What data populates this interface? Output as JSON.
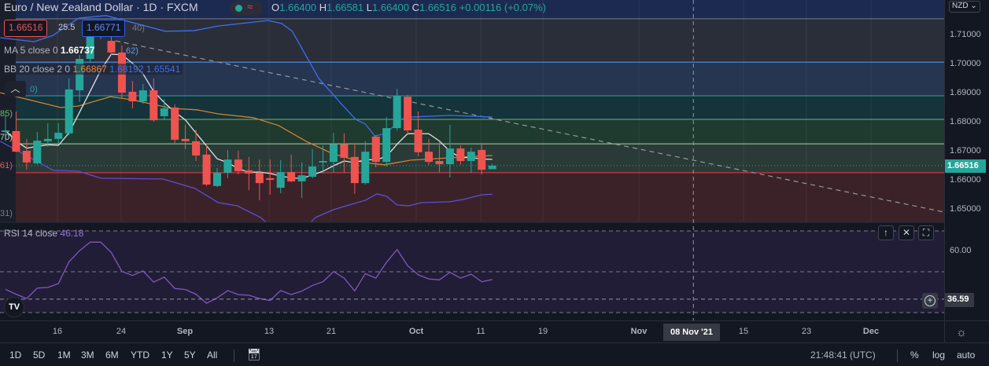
{
  "header": {
    "symbol_title": "Euro / New Zealand Dollar · 1D · FXCM",
    "ohlc": {
      "o_label": "O",
      "o": "1.66400",
      "h_label": "H",
      "h": "1.66581",
      "l_label": "L",
      "l": "1.66400",
      "c_label": "C",
      "c": "1.66516",
      "change": "+0.00116 (+0.07%)"
    },
    "sell_price": "1.66516",
    "spread": "25.5",
    "buy_price": "1.66771",
    "collapse_icon": "chevron-up"
  },
  "indicators": {
    "ma": {
      "label": "MA 5 close 0",
      "value": "1.66737"
    },
    "bb": {
      "label": "BB 20 close 2 0",
      "basis": "1.66867",
      "upper": "1.68192",
      "lower": "1.65541"
    },
    "rsi": {
      "label": "RSI 14 close",
      "value": "46.18"
    }
  },
  "fib_labels": [
    "40)",
    "62)",
    "0)",
    "85)",
    "70)",
    "61)",
    "31)"
  ],
  "price_axis": {
    "currency": "NZD ⌄",
    "ticks": [
      "1.71000",
      "1.70000",
      "1.69000",
      "1.68000",
      "1.67000",
      "1.66000",
      "1.65000"
    ],
    "current": "1.66516"
  },
  "rsi_axis": {
    "ticks": [
      "60.00"
    ],
    "crosshair_value": "36.59"
  },
  "rsi_pane_buttons": {
    "up": "↑",
    "close": "✕",
    "maximize": "⛶"
  },
  "time_axis": {
    "labels": [
      "16",
      "24",
      "Sep",
      "13",
      "21",
      "Oct",
      "11",
      "19",
      "Nov",
      "15",
      "23",
      "Dec"
    ],
    "crosshair": "08 Nov '21"
  },
  "bottom_bar": {
    "ranges": [
      "1D",
      "5D",
      "1M",
      "3M",
      "6M",
      "YTD",
      "1Y",
      "5Y",
      "All"
    ],
    "clock": "21:48:41 (UTC)",
    "percent": "%",
    "log": "log",
    "auto": "auto"
  },
  "colors": {
    "up": "#26a69a",
    "down": "#ef5350",
    "ma": "#e0e3eb",
    "bb_basis": "#d3822d",
    "bb_upper": "#3d6ff0",
    "bb_lower": "#5b4fd6",
    "rsi": "#7e57c2",
    "bg": "#131722"
  },
  "chart_data": {
    "type": "candlestick",
    "title": "Euro / New Zealand Dollar · 1D · FXCM",
    "ylim": [
      1.6425,
      1.7205
    ],
    "ohlc": [
      [
        1.6768,
        1.6825,
        1.6736,
        1.6773
      ],
      [
        1.6771,
        1.6838,
        1.6698,
        1.67
      ],
      [
        1.6703,
        1.6744,
        1.6638,
        1.6663
      ],
      [
        1.666,
        1.6768,
        1.6655,
        1.6738
      ],
      [
        1.6736,
        1.6798,
        1.6717,
        1.6744
      ],
      [
        1.6744,
        1.6798,
        1.673,
        1.6765
      ],
      [
        1.6763,
        1.6952,
        1.6757,
        1.6914
      ],
      [
        1.6911,
        1.7033,
        1.6871,
        1.7019
      ],
      [
        1.7019,
        1.7127,
        1.7006,
        1.7095
      ],
      [
        1.7095,
        1.7141,
        1.7087,
        1.7108
      ],
      [
        1.7081,
        1.7127,
        1.7033,
        1.7041
      ],
      [
        1.7041,
        1.7065,
        1.6884,
        1.6903
      ],
      [
        1.6906,
        1.6943,
        1.6849,
        1.6873
      ],
      [
        1.6873,
        1.6933,
        1.6865,
        1.6911
      ],
      [
        1.6911,
        1.6952,
        1.6803,
        1.6808
      ],
      [
        1.6822,
        1.6881,
        1.6808,
        1.6849
      ],
      [
        1.6852,
        1.6862,
        1.673,
        1.6741
      ],
      [
        1.6744,
        1.6792,
        1.6709,
        1.6736
      ],
      [
        1.6736,
        1.6776,
        1.6668,
        1.6687
      ],
      [
        1.669,
        1.6722,
        1.6582,
        1.6587
      ],
      [
        1.6582,
        1.6644,
        1.6579,
        1.6628
      ],
      [
        1.6628,
        1.6706,
        1.6609,
        1.6673
      ],
      [
        1.6673,
        1.6703,
        1.6622,
        1.6633
      ],
      [
        1.6636,
        1.6682,
        1.6568,
        1.6625
      ],
      [
        1.6628,
        1.6673,
        1.6533,
        1.6592
      ],
      [
        1.6609,
        1.6673,
        1.6552,
        1.6603
      ],
      [
        1.6576,
        1.6671,
        1.6557,
        1.663
      ],
      [
        1.663,
        1.669,
        1.6595,
        1.6598
      ],
      [
        1.6598,
        1.6663,
        1.6541,
        1.6619
      ],
      [
        1.6614,
        1.6709,
        1.6609,
        1.6649
      ],
      [
        1.6663,
        1.6722,
        1.6625,
        1.6668
      ],
      [
        1.6665,
        1.6765,
        1.6628,
        1.6725
      ],
      [
        1.6725,
        1.6763,
        1.6628,
        1.6679
      ],
      [
        1.6682,
        1.673,
        1.6555,
        1.6592
      ],
      [
        1.6592,
        1.6736,
        1.6587,
        1.67
      ],
      [
        1.6752,
        1.6757,
        1.6646,
        1.6665
      ],
      [
        1.6665,
        1.6819,
        1.6649,
        1.6781
      ],
      [
        1.6781,
        1.6916,
        1.6773,
        1.6892
      ],
      [
        1.6889,
        1.6895,
        1.6757,
        1.6773
      ],
      [
        1.6776,
        1.6838,
        1.6684,
        1.6698
      ],
      [
        1.67,
        1.6744,
        1.6655,
        1.6665
      ],
      [
        1.6668,
        1.6736,
        1.663,
        1.6657
      ],
      [
        1.6657,
        1.6792,
        1.6611,
        1.6711
      ],
      [
        1.6711,
        1.6722,
        1.6655,
        1.6668
      ],
      [
        1.6668,
        1.6714,
        1.6628,
        1.67
      ],
      [
        1.6706,
        1.673,
        1.6622,
        1.6638
      ],
      [
        1.664,
        1.6658,
        1.664,
        1.6652
      ]
    ],
    "bb_upper": [
      [
        -0.5,
        1.7092
      ],
      [
        2.7,
        1.7078
      ],
      [
        4.5,
        1.71
      ],
      [
        6.9,
        1.7159
      ],
      [
        9.5,
        1.7168
      ],
      [
        15.1,
        1.7114
      ],
      [
        17.8,
        1.7116
      ],
      [
        20.1,
        1.7132
      ],
      [
        24.8,
        1.7151
      ],
      [
        26.1,
        1.7141
      ],
      [
        27.1,
        1.7114
      ],
      [
        29.6,
        1.6952
      ],
      [
        31.8,
        1.6862
      ],
      [
        33.1,
        1.6811
      ],
      [
        34.0,
        1.6795
      ],
      [
        34.9,
        1.6754
      ],
      [
        36.0,
        1.6763
      ],
      [
        37.3,
        1.6811
      ],
      [
        38.3,
        1.6819
      ],
      [
        42.0,
        1.6825
      ],
      [
        46.0,
        1.6819
      ]
    ],
    "bb_lower": [
      [
        -0.5,
        1.6736
      ],
      [
        4.5,
        1.6636
      ],
      [
        6.9,
        1.6633
      ],
      [
        9.0,
        1.6609
      ],
      [
        14.9,
        1.6606
      ],
      [
        17.9,
        1.6574
      ],
      [
        20.1,
        1.6525
      ],
      [
        21.9,
        1.6514
      ],
      [
        24.1,
        1.6474
      ],
      [
        25.2,
        1.6439
      ],
      [
        28.2,
        1.6433
      ],
      [
        29.3,
        1.6474
      ],
      [
        31.0,
        1.6501
      ],
      [
        34.0,
        1.6533
      ],
      [
        35.1,
        1.6555
      ],
      [
        36.0,
        1.6547
      ],
      [
        37.0,
        1.6517
      ],
      [
        38.1,
        1.6514
      ],
      [
        39.3,
        1.6525
      ],
      [
        42.0,
        1.6528
      ],
      [
        43.3,
        1.6536
      ],
      [
        45.0,
        1.6552
      ],
      [
        46.0,
        1.6554
      ]
    ],
    "bb_basis": [
      [
        -0.5,
        1.6903
      ],
      [
        5.2,
        1.6852
      ],
      [
        6.9,
        1.6857
      ],
      [
        9.9,
        1.6889
      ],
      [
        11.9,
        1.6879
      ],
      [
        15.7,
        1.6849
      ],
      [
        18.1,
        1.6844
      ],
      [
        20.1,
        1.683
      ],
      [
        23.4,
        1.6817
      ],
      [
        25.8,
        1.679
      ],
      [
        28.4,
        1.6736
      ],
      [
        30.8,
        1.6695
      ],
      [
        33.8,
        1.6663
      ],
      [
        35.8,
        1.6655
      ],
      [
        38.3,
        1.6671
      ],
      [
        40.7,
        1.6676
      ],
      [
        43.3,
        1.6682
      ],
      [
        46.0,
        1.6687
      ]
    ],
    "trendline": [
      [
        10.4,
        1.7081
      ],
      [
        90.5,
        1.6479
      ]
    ],
    "fib_levels": [
      1.7157,
      1.7008,
      1.6892,
      1.6811,
      1.6727,
      1.6628
    ],
    "rsi": [
      41.4,
      39.0,
      36.9,
      42.0,
      42.3,
      44.2,
      54.9,
      60.3,
      64.5,
      64.5,
      59.4,
      50.1,
      48.2,
      50.4,
      44.9,
      47.4,
      41.8,
      41.3,
      39.0,
      34.6,
      37.2,
      40.8,
      38.8,
      38.5,
      36.9,
      35.9,
      40.8,
      38.8,
      40.5,
      43.3,
      45.1,
      50.1,
      46.9,
      40.6,
      49.1,
      46.9,
      54.6,
      60.9,
      53.0,
      48.5,
      46.5,
      46.0,
      49.7,
      46.9,
      48.8,
      45.1,
      46.18
    ],
    "rsi_levels": [
      70,
      50,
      30
    ],
    "crosshair": {
      "price": 36.59,
      "bar": 65.0
    }
  }
}
